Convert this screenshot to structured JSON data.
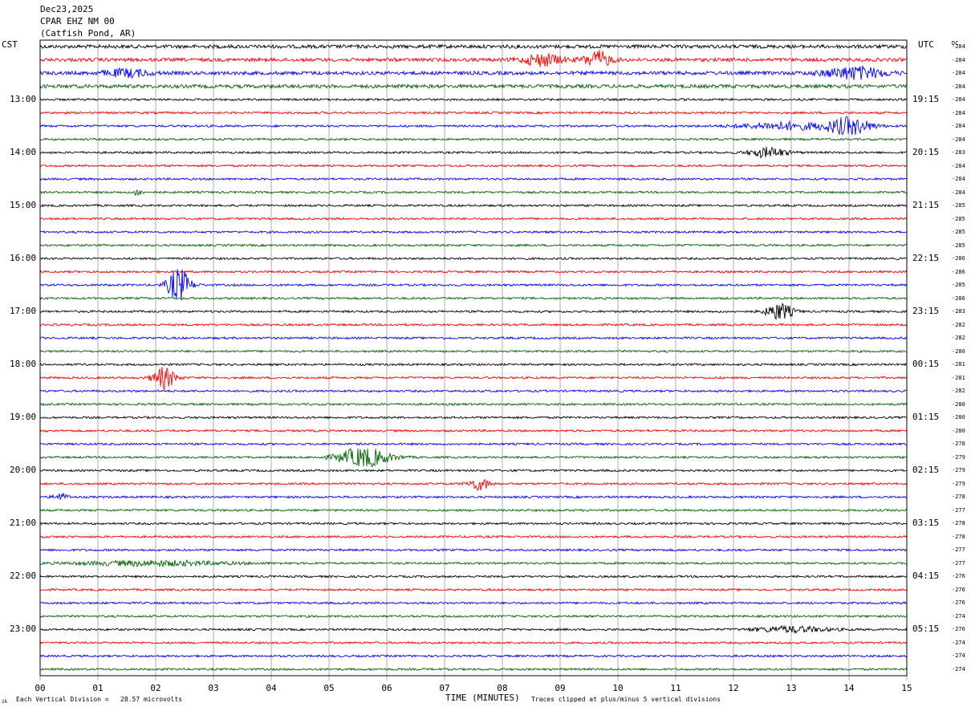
{
  "header": {
    "date": "Dec23,2025",
    "station": "CPAR EHZ NM 00",
    "location": "(Catfish Pond, AR)"
  },
  "left_tz": "CST",
  "right_tz": "UTC",
  "dc_label": "DC",
  "footer": {
    "division": "Each Vertical Division =   28.57 microvolts",
    "xlabel": "TIME (MINUTES)",
    "clip": "Traces clipped at plus/minus 5 vertical divisions",
    "logo": "zk"
  },
  "colors": {
    "black": "#000000",
    "red": "#ff0000",
    "blue": "#0000ff",
    "green": "#006400",
    "grid": "#999999"
  },
  "chart_data": {
    "type": "line",
    "title": "Dec23,2025 CPAR EHZ NM 00 (Catfish Pond, AR)",
    "xlabel": "TIME (MINUTES)",
    "xlim": [
      0,
      15
    ],
    "x_ticks": [
      "00",
      "01",
      "02",
      "03",
      "04",
      "05",
      "06",
      "07",
      "08",
      "09",
      "10",
      "11",
      "12",
      "13",
      "14",
      "15"
    ],
    "trace_colors": [
      "black",
      "red",
      "blue",
      "green"
    ],
    "left_labels": [
      {
        "row": 0,
        "text": ""
      },
      {
        "row": 4,
        "text": "13:00"
      },
      {
        "row": 8,
        "text": "14:00"
      },
      {
        "row": 12,
        "text": "15:00"
      },
      {
        "row": 16,
        "text": "16:00"
      },
      {
        "row": 20,
        "text": "17:00"
      },
      {
        "row": 24,
        "text": "18:00"
      },
      {
        "row": 28,
        "text": "19:00"
      },
      {
        "row": 32,
        "text": "20:00"
      },
      {
        "row": 36,
        "text": "21:00"
      },
      {
        "row": 40,
        "text": "22:00"
      },
      {
        "row": 44,
        "text": "23:00"
      }
    ],
    "right_labels": [
      {
        "row": 4,
        "text": "19:15"
      },
      {
        "row": 8,
        "text": "20:15"
      },
      {
        "row": 12,
        "text": "21:15"
      },
      {
        "row": 16,
        "text": "22:15"
      },
      {
        "row": 20,
        "text": "23:15"
      },
      {
        "row": 24,
        "text": "00:15"
      },
      {
        "row": 28,
        "text": "01:15"
      },
      {
        "row": 32,
        "text": "02:15"
      },
      {
        "row": 36,
        "text": "03:15"
      },
      {
        "row": 40,
        "text": "04:15"
      },
      {
        "row": 44,
        "text": "05:15"
      }
    ],
    "dc_offsets": [
      "-284",
      "-284",
      "-284",
      "-284",
      "-284",
      "-284",
      "-284",
      "-284",
      "-283",
      "-284",
      "-284",
      "-284",
      "-285",
      "-285",
      "-285",
      "-285",
      "-286",
      "-286",
      "-285",
      "-286",
      "-283",
      "-282",
      "-282",
      "-280",
      "-281",
      "-281",
      "-282",
      "-280",
      "-280",
      "-280",
      "-278",
      "-279",
      "-279",
      "-279",
      "-278",
      "-277",
      "-278",
      "-278",
      "-277",
      "-277",
      "-276",
      "-276",
      "-276",
      "-274",
      "-276",
      "-274",
      "-274",
      "-274"
    ],
    "events": [
      {
        "row": 1,
        "minute": 8.7,
        "amp": 2.5,
        "dur": 0.5
      },
      {
        "row": 1,
        "minute": 9.65,
        "amp": 3.5,
        "dur": 0.35
      },
      {
        "row": 2,
        "minute": 14.1,
        "amp": 2.5,
        "dur": 0.8
      },
      {
        "row": 2,
        "minute": 1.5,
        "amp": 1.5,
        "dur": 0.6
      },
      {
        "row": 6,
        "minute": 12.9,
        "amp": 1.5,
        "dur": 1.2
      },
      {
        "row": 6,
        "minute": 14.0,
        "amp": 3.5,
        "dur": 0.6
      },
      {
        "row": 8,
        "minute": 12.6,
        "amp": 2.0,
        "dur": 0.5
      },
      {
        "row": 11,
        "minute": 1.7,
        "amp": 1.8,
        "dur": 0.1
      },
      {
        "row": 18,
        "minute": 2.4,
        "amp": 7.0,
        "dur": 0.3
      },
      {
        "row": 20,
        "minute": 12.8,
        "amp": 3.5,
        "dur": 0.35
      },
      {
        "row": 25,
        "minute": 2.15,
        "amp": 4.5,
        "dur": 0.3
      },
      {
        "row": 31,
        "minute": 5.6,
        "amp": 4.0,
        "dur": 0.7
      },
      {
        "row": 33,
        "minute": 7.6,
        "amp": 2.5,
        "dur": 0.3
      },
      {
        "row": 34,
        "minute": 0.35,
        "amp": 1.5,
        "dur": 0.2
      },
      {
        "row": 39,
        "minute": 2.0,
        "amp": 1.0,
        "dur": 2.0
      },
      {
        "row": 44,
        "minute": 13.0,
        "amp": 1.2,
        "dur": 1.0
      }
    ]
  }
}
